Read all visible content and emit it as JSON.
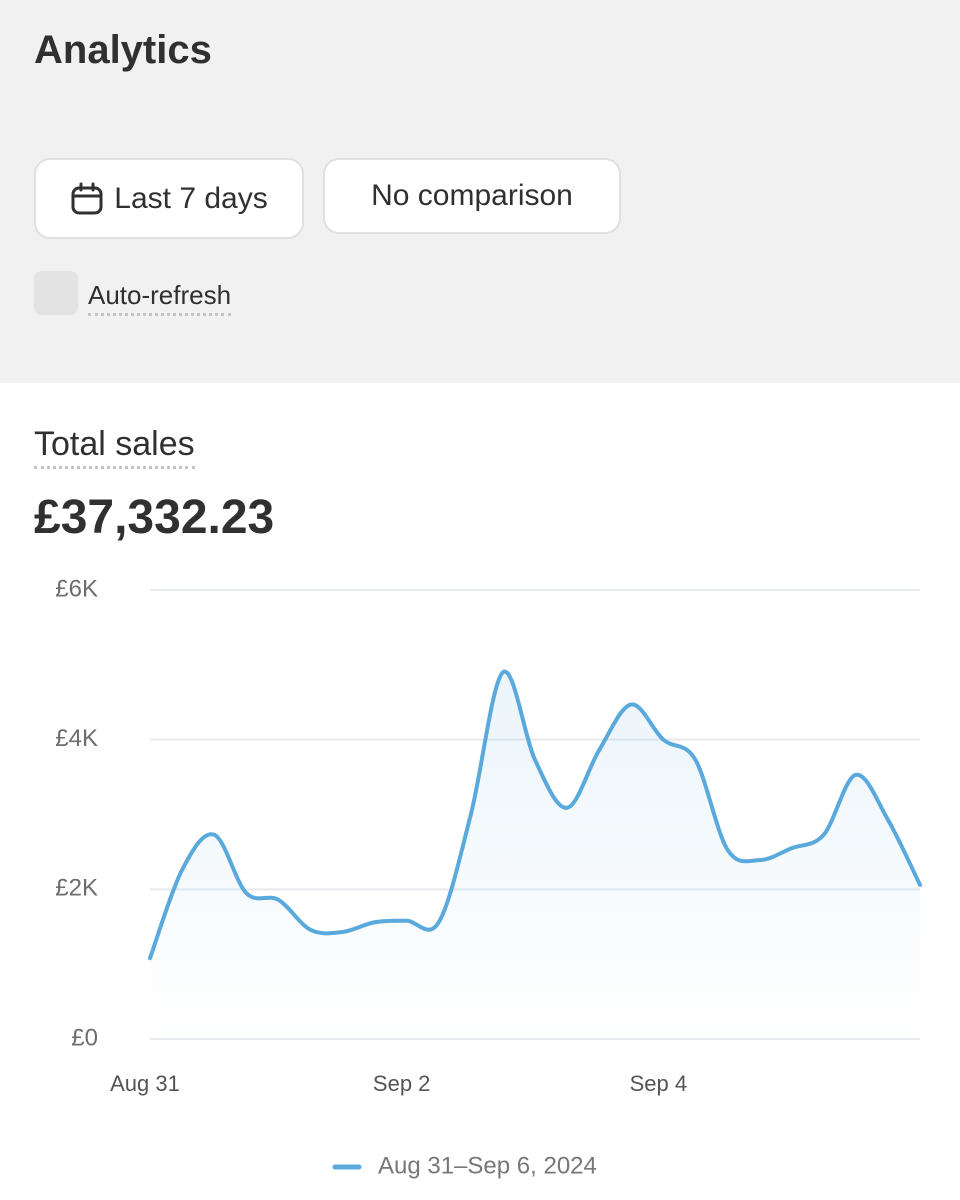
{
  "header": {
    "title": "Analytics",
    "date_button": "Last 7 days",
    "comparison_button": "No comparison",
    "auto_refresh": "Auto-refresh"
  },
  "card": {
    "title": "Total sales",
    "total": "£37,332.23"
  },
  "chart_data": {
    "type": "line",
    "categories": [
      "Aug 31",
      null,
      null,
      null,
      null,
      null,
      null,
      null,
      "Sep 2",
      null,
      null,
      null,
      null,
      null,
      null,
      null,
      "Sep 4",
      null,
      null,
      null,
      null,
      null,
      null,
      null,
      null
    ],
    "series": [
      {
        "name": "Aug 31–Sep 6, 2024",
        "color": "#5aa9dc",
        "values": [
          1080,
          2260,
          2730,
          1950,
          1860,
          1460,
          1430,
          1560,
          1580,
          1560,
          3000,
          4900,
          3730,
          3090,
          3860,
          4470,
          4000,
          3730,
          2530,
          2390,
          2550,
          2730,
          3530,
          2930,
          2060
        ]
      }
    ],
    "ylim": [
      0,
      6000
    ],
    "yticks": [
      {
        "value": 0,
        "label": "£0"
      },
      {
        "value": 2000,
        "label": "£2K"
      },
      {
        "value": 4000,
        "label": "£4K"
      },
      {
        "value": 6000,
        "label": "£6K"
      }
    ],
    "grid": true
  }
}
